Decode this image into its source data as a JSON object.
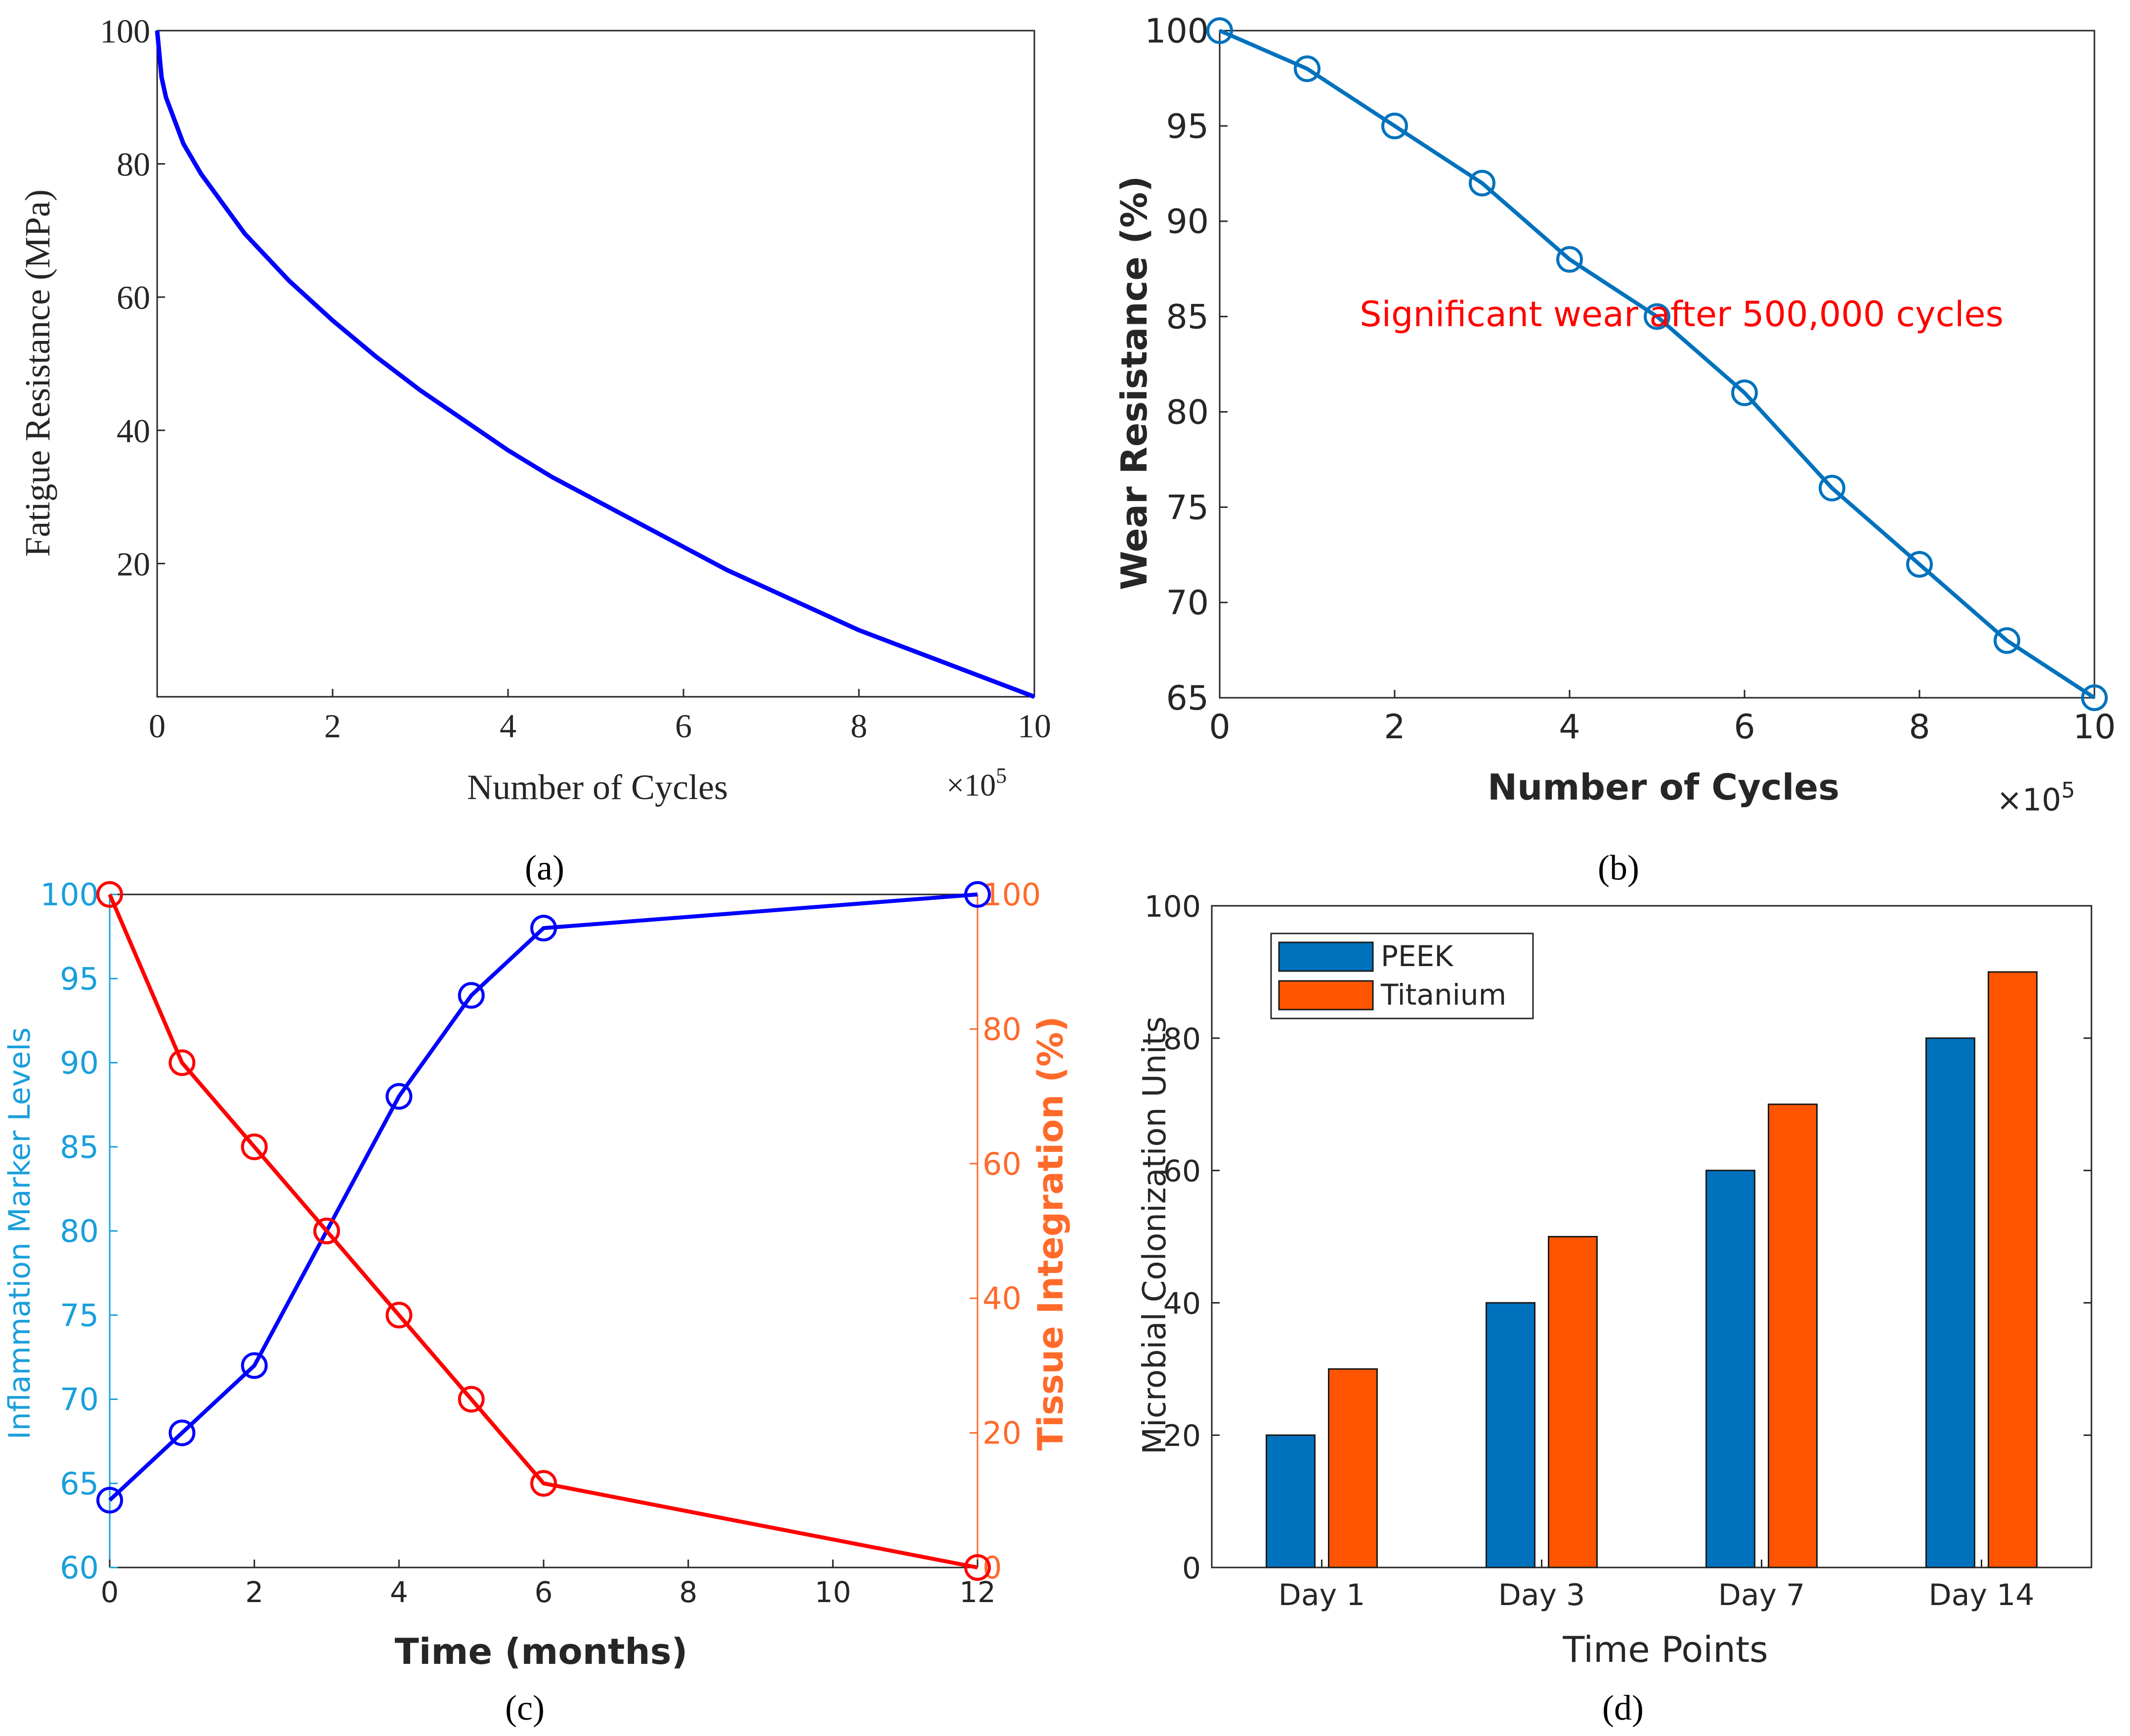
{
  "panel_labels": [
    "(a)",
    "(b)",
    "(c)",
    "(d)"
  ],
  "colors": {
    "fatigue_line": "#0000ff",
    "wear_line": "#0072bd",
    "annotation": "#ff0000",
    "inflammation": "#0000ff",
    "inflammation_axis": "#1a9fdb",
    "tissue": "#ff0000",
    "tissue_axis": "#ff6a2b",
    "peek": "#0072bd",
    "titanium": "#ff5500",
    "axis": "#262626"
  },
  "chart_data": [
    {
      "id": "a",
      "type": "line",
      "title": "",
      "xlabel": "Number of Cycles",
      "ylabel": "Fatigue Resistance (MPa)",
      "x_multiplier": "×10",
      "x_multiplier_exp": "5",
      "xlim": [
        0,
        10
      ],
      "ylim": [
        0,
        100
      ],
      "xticks": [
        0,
        2,
        4,
        6,
        8,
        10
      ],
      "yticks": [
        20,
        40,
        60,
        80,
        100
      ],
      "series": [
        {
          "name": "Fatigue Resistance",
          "x": [
            0,
            0.05,
            0.1,
            0.2,
            0.3,
            0.5,
            0.75,
            1,
            1.5,
            2,
            2.5,
            3,
            3.5,
            4,
            4.5,
            5,
            5.5,
            6,
            6.5,
            7,
            7.5,
            8,
            8.5,
            9,
            9.5,
            10
          ],
          "y": [
            100,
            93,
            90,
            86.5,
            83,
            78.5,
            74,
            69.5,
            62.5,
            56.5,
            51,
            46,
            41.5,
            37,
            33,
            29.5,
            26,
            22.5,
            19,
            16,
            13,
            10,
            7.5,
            5,
            2.5,
            0
          ]
        }
      ]
    },
    {
      "id": "b",
      "type": "line",
      "title": "",
      "xlabel": "Number of Cycles",
      "ylabel": "Wear Resistance (%)",
      "x_multiplier": "×10",
      "x_multiplier_exp": "5",
      "xlim": [
        0,
        10
      ],
      "ylim": [
        65,
        100
      ],
      "xticks": [
        0,
        2,
        4,
        6,
        8,
        10
      ],
      "yticks": [
        65,
        70,
        75,
        80,
        85,
        90,
        95,
        100
      ],
      "annotation": {
        "text": "Significant wear after 500,000 cycles",
        "x": 1.6,
        "y": 84.5
      },
      "series": [
        {
          "name": "Wear Resistance",
          "x": [
            0,
            1,
            2,
            3,
            4,
            5,
            6,
            7,
            8,
            9,
            10
          ],
          "y": [
            100,
            98,
            95,
            92,
            88,
            85,
            81,
            76,
            72,
            68,
            65
          ]
        }
      ]
    },
    {
      "id": "c",
      "type": "line",
      "title": "",
      "xlabel": "Time (months)",
      "ylabel_left": "Inflammation Marker Levels",
      "ylabel_right": "Tissue Integration (%)",
      "xlim": [
        0,
        12
      ],
      "ylim_left": [
        60,
        100
      ],
      "ylim_right": [
        0,
        100
      ],
      "xticks": [
        0,
        2,
        4,
        6,
        8,
        10,
        12
      ],
      "yticks_left": [
        60,
        65,
        70,
        75,
        80,
        85,
        90,
        95,
        100
      ],
      "yticks_right": [
        0,
        20,
        40,
        60,
        80,
        100
      ],
      "series": [
        {
          "name": "Inflammation Marker Levels",
          "axis": "left",
          "x": [
            0,
            1,
            2,
            3,
            4,
            5,
            6,
            12
          ],
          "y": [
            64,
            68,
            72,
            80,
            88,
            94,
            98,
            100
          ]
        },
        {
          "name": "Tissue Integration (%)",
          "axis": "right",
          "x": [
            0,
            1,
            2,
            3,
            4,
            5,
            6,
            12
          ],
          "y": [
            100,
            75,
            62.5,
            50,
            37.5,
            25,
            12.5,
            0
          ]
        }
      ]
    },
    {
      "id": "d",
      "type": "bar",
      "title": "",
      "xlabel": "Time Points",
      "ylabel": "Microbial Colonization Units",
      "ylim": [
        0,
        100
      ],
      "yticks": [
        0,
        20,
        40,
        60,
        80,
        100
      ],
      "categories": [
        "Day 1",
        "Day 3",
        "Day 7",
        "Day 14"
      ],
      "legend_position": "top-left",
      "series": [
        {
          "name": "PEEK",
          "values": [
            20,
            40,
            60,
            80
          ]
        },
        {
          "name": "Titanium",
          "values": [
            30,
            50,
            70,
            90
          ]
        }
      ]
    }
  ]
}
